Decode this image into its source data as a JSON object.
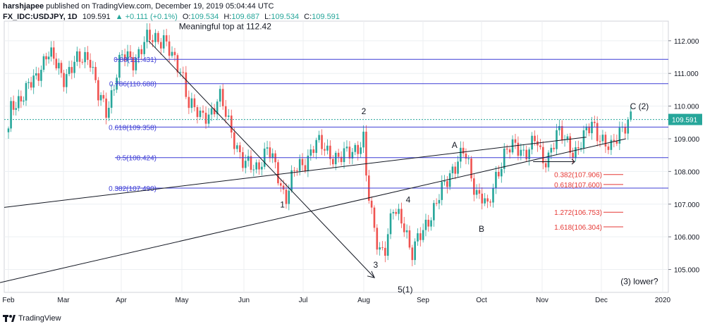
{
  "header": {
    "publisher": "harshjapee",
    "published_text": "published on TradingView.com, December 19, 2019 05:04:44 UTC",
    "symbol": "FX_IDC:USDJPY, 1D",
    "last": "109.591",
    "change": "▲ +0.111 (+0.1%)",
    "o_label": "O:",
    "o_value": "109.534",
    "h_label": "H:",
    "h_value": "109.687",
    "l_label": "L:",
    "l_value": "109.534",
    "c_label": "C:",
    "c_value": "109.591"
  },
  "footer": {
    "brand": "TradingView"
  },
  "colors": {
    "up": "#26a69a",
    "down": "#ef5350",
    "fib": "#3f3fd6",
    "ext": "#e53935",
    "price_line": "#26a69a",
    "grid": "#eceff2"
  },
  "chart_data": {
    "type": "candlestick",
    "symbol": "FX_IDC:USDJPY",
    "interval": "1D",
    "ylim": [
      104.3,
      112.6
    ],
    "y_ticks": [
      "112.000",
      "111.000",
      "110.000",
      "109.000",
      "108.000",
      "107.000",
      "106.000",
      "105.000"
    ],
    "x_ticks": [
      "Feb",
      "Mar",
      "Apr",
      "May",
      "Jun",
      "Jul",
      "Aug",
      "Sep",
      "Oct",
      "Nov",
      "Dec",
      "2020"
    ],
    "last_price": "109.591",
    "fib_levels": [
      {
        "label": "0.88(111.431)",
        "value": 111.431
      },
      {
        "label": "0.786(110.688)",
        "value": 110.688
      },
      {
        "label": "0.618(109.358)",
        "value": 109.358
      },
      {
        "label": "0.5(108.424)",
        "value": 108.424
      },
      {
        "label": "0.382(107.490)",
        "value": 107.49
      }
    ],
    "extension_levels": [
      {
        "label": "0.382(107.906)",
        "value": 107.906
      },
      {
        "label": "0.618(107.600)",
        "value": 107.6
      },
      {
        "label": "1.272(106.753)",
        "value": 106.753
      },
      {
        "label": "1.618(106.304)",
        "value": 106.304
      }
    ],
    "annotations": [
      "Meaningful top at 112.42",
      "1",
      "2",
      "3",
      "4",
      "5(1)",
      "A",
      "B",
      "C (2)",
      "(3) lower?"
    ],
    "closes_by_month": [
      {
        "month": "Feb",
        "close": 109.8
      },
      {
        "month": "Mar",
        "close": 110.9
      },
      {
        "month": "Apr",
        "close": 111.6
      },
      {
        "month": "May",
        "close": 109.6
      },
      {
        "month": "Jun",
        "close": 107.8
      },
      {
        "month": "Jul",
        "close": 108.7
      },
      {
        "month": "Aug",
        "close": 106.2
      },
      {
        "month": "Sep",
        "close": 108.0
      },
      {
        "month": "Oct",
        "close": 108.1
      },
      {
        "month": "Nov",
        "close": 109.5
      },
      {
        "month": "Dec",
        "close": 109.59
      }
    ]
  }
}
